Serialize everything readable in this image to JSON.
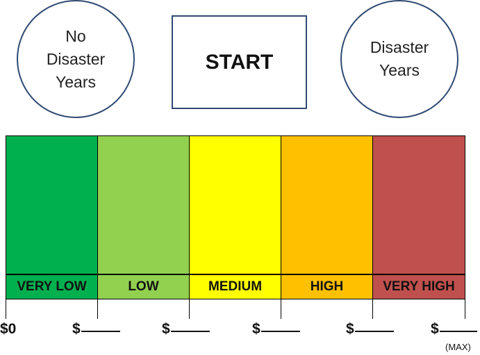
{
  "circles": {
    "left": "No\nDisaster\nYears",
    "right": "Disaster\nYears"
  },
  "start_box": {
    "label": "START"
  },
  "levels": [
    {
      "label": "VERY LOW",
      "color": "#00b04f"
    },
    {
      "label": "LOW",
      "color": "#92d050"
    },
    {
      "label": "MEDIUM",
      "color": "#ffff00"
    },
    {
      "label": "HIGH",
      "color": "#ffc000"
    },
    {
      "label": "VERY HIGH",
      "color": "#c0504d"
    }
  ],
  "amounts": [
    "$0",
    "$",
    "$",
    "$",
    "$",
    "$"
  ],
  "max_note": "(MAX)"
}
